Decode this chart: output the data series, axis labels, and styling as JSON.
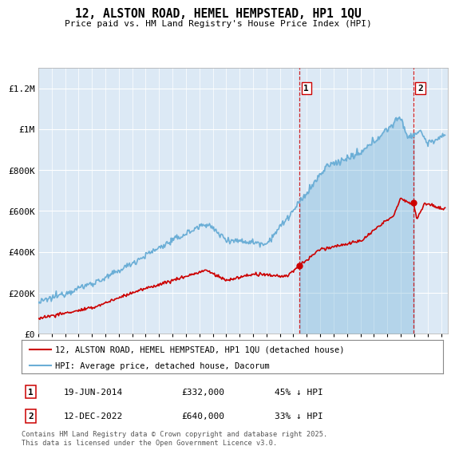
{
  "title": "12, ALSTON ROAD, HEMEL HEMPSTEAD, HP1 1QU",
  "subtitle": "Price paid vs. HM Land Registry's House Price Index (HPI)",
  "hpi_color": "#6baed6",
  "price_color": "#cc0000",
  "vline_color": "#cc0000",
  "background_color": "#ffffff",
  "plot_bg_color": "#dce9f5",
  "ylim": [
    0,
    1300000
  ],
  "yticks": [
    0,
    200000,
    400000,
    600000,
    800000,
    1000000,
    1200000
  ],
  "ytick_labels": [
    "£0",
    "£200K",
    "£400K",
    "£600K",
    "£800K",
    "£1M",
    "£1.2M"
  ],
  "sale1_date": 2014.47,
  "sale1_price": 332000,
  "sale1_label": "1",
  "sale2_date": 2022.95,
  "sale2_price": 640000,
  "sale2_label": "2",
  "legend_line1": "12, ALSTON ROAD, HEMEL HEMPSTEAD, HP1 1QU (detached house)",
  "legend_line2": "HPI: Average price, detached house, Dacorum",
  "note1_label": "1",
  "note1_date": "19-JUN-2014",
  "note1_price": "£332,000",
  "note1_hpi": "45% ↓ HPI",
  "note2_label": "2",
  "note2_date": "12-DEC-2022",
  "note2_price": "£640,000",
  "note2_hpi": "33% ↓ HPI",
  "footer": "Contains HM Land Registry data © Crown copyright and database right 2025.\nThis data is licensed under the Open Government Licence v3.0.",
  "xmin": 1995,
  "xmax": 2025.5
}
